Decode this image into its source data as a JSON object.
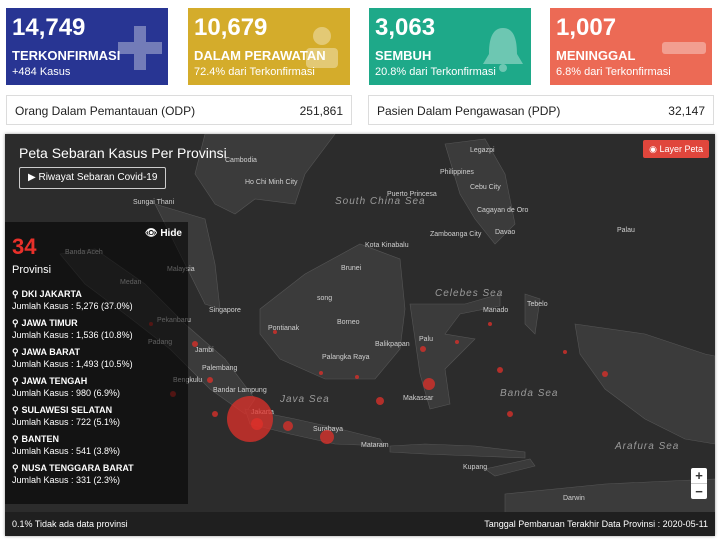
{
  "cards": [
    {
      "number": "14,749",
      "label": "TERKONFIRMASI",
      "sub": "+484 Kasus",
      "color": "#283593",
      "icon": "plus-icon"
    },
    {
      "number": "10,679",
      "label": "DALAM PERAWATAN",
      "sub": "72.4% dari Terkonfirmasi",
      "color": "#d4ac2b",
      "icon": "hospital-bed-icon"
    },
    {
      "number": "3,063",
      "label": "SEMBUH",
      "sub": "20.8% dari Terkonfirmasi",
      "color": "#1ea989",
      "icon": "bell-icon"
    },
    {
      "number": "1,007",
      "label": "MENINGGAL",
      "sub": "6.8% dari Terkonfirmasi",
      "color": "#ec6a55",
      "icon": "minus-icon"
    }
  ],
  "odp": {
    "label": "Orang Dalam Pemantauan (ODP)",
    "value": "251,861"
  },
  "pdp": {
    "label": "Pasien Dalam Pengawasan (PDP)",
    "value": "32,147"
  },
  "map": {
    "title": "Peta Sebaran Kasus Per Provinsi",
    "riwayat_button": "▶ Riwayat Sebaran Covid-19",
    "layer_button": "Layer Peta",
    "hide_button": "Hide",
    "province_count": "34",
    "province_label": "Provinsi",
    "provinces": [
      {
        "name": "DKI JAKARTA",
        "value": "Jumlah Kasus : 5,276 (37.0%)"
      },
      {
        "name": "JAWA TIMUR",
        "value": "Jumlah Kasus : 1,536 (10.8%)"
      },
      {
        "name": "JAWA BARAT",
        "value": "Jumlah Kasus : 1,493 (10.5%)"
      },
      {
        "name": "JAWA TENGAH",
        "value": "Jumlah Kasus : 980 (6.9%)"
      },
      {
        "name": "SULAWESI SELATAN",
        "value": "Jumlah Kasus : 722 (5.1%)"
      },
      {
        "name": "BANTEN",
        "value": "Jumlah Kasus : 541 (3.8%)"
      },
      {
        "name": "NUSA TENGGARA BARAT",
        "value": "Jumlah Kasus : 331 (2.3%)"
      }
    ],
    "footer_left": "0.1% Tidak ada data provinsi",
    "footer_right": "Tanggal Pembaruan Terakhir Data Provinsi : 2020-05-11",
    "zoom_in": "+",
    "zoom_out": "−",
    "places": [
      "Cambodia",
      "Ho Chi Minh City",
      "South China Sea",
      "Philippines",
      "Legazpi",
      "Cebu City",
      "Puerto Princesa",
      "Cagayan de Oro",
      "Zamboanga City",
      "Davao",
      "Palau",
      "Kota Kinabalu",
      "Brunei",
      "Celebes Sea",
      "Manado",
      "Tebelo",
      "Banda Aceh",
      "Medan",
      "Malaysia",
      "Pekanbaru",
      "Padang",
      "Singapore",
      "Jambi",
      "Palembang",
      "Bengkulu",
      "Bandar Lampung",
      "Jakarta",
      "Java Sea",
      "Surabaya",
      "Pontianak",
      "Borneo",
      "Palangka Raya",
      "Balikpapan",
      "Palu",
      "Makassar",
      "Banda Sea",
      "Mataram",
      "Kupang",
      "Arafura Sea",
      "Darwin",
      "Sungai Thani",
      "song"
    ]
  }
}
